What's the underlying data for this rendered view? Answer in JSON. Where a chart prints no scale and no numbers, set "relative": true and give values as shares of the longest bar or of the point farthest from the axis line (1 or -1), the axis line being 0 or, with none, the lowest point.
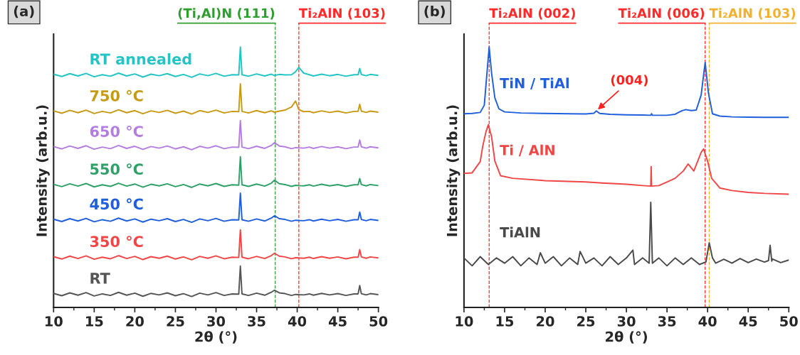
{
  "chart_data": [
    {
      "type": "line",
      "title": "(a)",
      "xlabel": "2θ (°)",
      "ylabel": "Intensity (arb.u.)",
      "relative": true,
      "tick_labels": "x",
      "xlim": [
        10,
        50
      ],
      "xticks": [
        10,
        15,
        20,
        25,
        30,
        35,
        40,
        45,
        50
      ],
      "x": [
        10,
        11,
        12,
        13,
        14,
        15,
        16,
        17,
        18,
        19,
        20,
        21,
        22,
        23,
        24,
        25,
        26,
        27,
        28,
        29,
        30,
        31,
        32,
        32.8,
        33,
        33.2,
        34,
        35,
        36,
        36.8,
        37.2,
        37.8,
        38.5,
        39.3,
        39.8,
        40.2,
        40.8,
        41.5,
        42,
        43,
        44,
        45,
        46,
        47,
        47.5,
        47.7,
        47.9,
        48.5,
        49,
        50
      ],
      "ref_lines": [
        {
          "axis": "x",
          "value": 37.3,
          "label": "(Ti,Al)N (111)",
          "color": "#2e9e2e",
          "line_style": "dashed"
        },
        {
          "axis": "x",
          "value": 40.2,
          "label": "Ti₂AlN (103)",
          "color": "#ff2a2a",
          "line_style": "dashed"
        }
      ],
      "series": [
        {
          "name": "RT",
          "color": "#555555",
          "values": [
            0.054,
            0.045,
            0.056,
            0.047,
            0.057,
            0.044,
            0.052,
            0.046,
            0.058,
            0.047,
            0.055,
            0.043,
            0.054,
            0.048,
            0.056,
            0.045,
            0.053,
            0.042,
            0.055,
            0.048,
            0.057,
            0.046,
            0.052,
            0.051,
            0.159,
            0.052,
            0.046,
            0.055,
            0.047,
            0.058,
            0.066,
            0.056,
            0.053,
            0.046,
            0.05,
            0.049,
            0.048,
            0.052,
            0.047,
            0.054,
            0.048,
            0.053,
            0.046,
            0.052,
            0.052,
            0.084,
            0.053,
            0.048,
            0.053,
            0.049
          ]
        },
        {
          "name": "350 °C",
          "color": "#f04646",
          "values": [
            0.195,
            0.186,
            0.197,
            0.188,
            0.198,
            0.185,
            0.193,
            0.187,
            0.199,
            0.188,
            0.196,
            0.184,
            0.195,
            0.189,
            0.197,
            0.186,
            0.194,
            0.183,
            0.196,
            0.189,
            0.198,
            0.187,
            0.193,
            0.192,
            0.298,
            0.193,
            0.187,
            0.196,
            0.188,
            0.199,
            0.208,
            0.197,
            0.194,
            0.187,
            0.191,
            0.19,
            0.189,
            0.193,
            0.188,
            0.195,
            0.189,
            0.194,
            0.187,
            0.193,
            0.193,
            0.222,
            0.194,
            0.189,
            0.194,
            0.19
          ]
        },
        {
          "name": "450 °C",
          "color": "#1f5fdc",
          "values": [
            0.339,
            0.33,
            0.341,
            0.332,
            0.342,
            0.329,
            0.337,
            0.331,
            0.343,
            0.332,
            0.34,
            0.328,
            0.339,
            0.333,
            0.341,
            0.33,
            0.338,
            0.327,
            0.34,
            0.333,
            0.342,
            0.331,
            0.337,
            0.336,
            0.439,
            0.337,
            0.331,
            0.34,
            0.332,
            0.343,
            0.352,
            0.341,
            0.338,
            0.331,
            0.335,
            0.334,
            0.333,
            0.337,
            0.332,
            0.339,
            0.333,
            0.338,
            0.331,
            0.337,
            0.337,
            0.366,
            0.338,
            0.333,
            0.338,
            0.334
          ]
        },
        {
          "name": "550 °C",
          "color": "#2fa068",
          "values": [
            0.473,
            0.464,
            0.475,
            0.466,
            0.476,
            0.463,
            0.471,
            0.465,
            0.477,
            0.466,
            0.474,
            0.462,
            0.473,
            0.467,
            0.475,
            0.464,
            0.472,
            0.461,
            0.474,
            0.467,
            0.476,
            0.465,
            0.471,
            0.47,
            0.579,
            0.471,
            0.465,
            0.474,
            0.466,
            0.477,
            0.489,
            0.475,
            0.472,
            0.465,
            0.469,
            0.468,
            0.467,
            0.471,
            0.466,
            0.473,
            0.467,
            0.472,
            0.465,
            0.471,
            0.471,
            0.495,
            0.472,
            0.467,
            0.472,
            0.468
          ]
        },
        {
          "name": "650 °C",
          "color": "#b47ee0",
          "values": [
            0.618,
            0.609,
            0.62,
            0.611,
            0.621,
            0.608,
            0.616,
            0.61,
            0.622,
            0.611,
            0.619,
            0.607,
            0.618,
            0.612,
            0.62,
            0.609,
            0.617,
            0.606,
            0.619,
            0.612,
            0.621,
            0.61,
            0.616,
            0.615,
            0.718,
            0.616,
            0.61,
            0.619,
            0.611,
            0.622,
            0.633,
            0.62,
            0.617,
            0.61,
            0.614,
            0.613,
            0.612,
            0.616,
            0.611,
            0.618,
            0.612,
            0.617,
            0.61,
            0.616,
            0.616,
            0.643,
            0.617,
            0.612,
            0.617,
            0.613
          ]
        },
        {
          "name": "750 °C",
          "color": "#c89a14",
          "values": [
            0.755,
            0.746,
            0.757,
            0.748,
            0.758,
            0.745,
            0.753,
            0.747,
            0.759,
            0.748,
            0.756,
            0.744,
            0.755,
            0.749,
            0.757,
            0.746,
            0.754,
            0.743,
            0.756,
            0.749,
            0.758,
            0.747,
            0.753,
            0.752,
            0.859,
            0.753,
            0.747,
            0.756,
            0.748,
            0.755,
            0.75,
            0.754,
            0.758,
            0.77,
            0.793,
            0.76,
            0.752,
            0.753,
            0.748,
            0.755,
            0.749,
            0.754,
            0.747,
            0.753,
            0.753,
            0.78,
            0.754,
            0.749,
            0.754,
            0.75
          ]
        },
        {
          "name": "RT annealed",
          "color": "#22c4c4",
          "values": [
            0.896,
            0.887,
            0.898,
            0.889,
            0.899,
            0.886,
            0.894,
            0.888,
            0.9,
            0.889,
            0.897,
            0.885,
            0.896,
            0.89,
            0.898,
            0.887,
            0.895,
            0.884,
            0.897,
            0.89,
            0.899,
            0.888,
            0.894,
            0.893,
            1.0,
            0.894,
            0.888,
            0.897,
            0.889,
            0.896,
            0.891,
            0.895,
            0.893,
            0.894,
            0.905,
            0.922,
            0.9,
            0.894,
            0.889,
            0.896,
            0.89,
            0.895,
            0.888,
            0.894,
            0.894,
            0.918,
            0.895,
            0.89,
            0.895,
            0.891
          ]
        }
      ]
    },
    {
      "type": "line",
      "title": "(b)",
      "xlabel": "2θ (°)",
      "ylabel": "Intensity (arb.u.)",
      "relative": true,
      "tick_labels": "x",
      "xlim": [
        10,
        50
      ],
      "xticks": [
        10,
        15,
        20,
        25,
        30,
        35,
        40,
        45,
        50
      ],
      "ref_lines": [
        {
          "axis": "x",
          "value": 13.1,
          "label": "Ti₂AlN (002)",
          "color": "#ff2a2a",
          "line_style": "dashed"
        },
        {
          "axis": "x",
          "value": 39.7,
          "label": "Ti₂AlN (006)",
          "color": "#ff2a2a",
          "line_style": "dashed"
        },
        {
          "axis": "x",
          "value": 40.2,
          "label": "Ti₂AlN (103)",
          "color": "#f0b030",
          "line_style": "dashed"
        }
      ],
      "annotations": [
        {
          "text": "(004)",
          "x": 26.3,
          "y": 0.755
        }
      ],
      "series": [
        {
          "name": "TiN / TiAl",
          "color": "#1f5fdc",
          "x": [
            10,
            11,
            12,
            12.5,
            12.8,
            13.1,
            13.4,
            13.8,
            14.3,
            15,
            17,
            20,
            23,
            25,
            26,
            26.3,
            26.7,
            28,
            30,
            32,
            33,
            33.1,
            33.2,
            35,
            36,
            36.8,
            37.3,
            38,
            38.6,
            39.2,
            39.7,
            40.1,
            40.6,
            41.5,
            43,
            45,
            47,
            50
          ],
          "values": [
            0.744,
            0.745,
            0.749,
            0.777,
            0.89,
            1.0,
            0.899,
            0.805,
            0.763,
            0.751,
            0.747,
            0.745,
            0.744,
            0.743,
            0.746,
            0.755,
            0.745,
            0.742,
            0.74,
            0.739,
            0.738,
            0.744,
            0.738,
            0.738,
            0.742,
            0.755,
            0.76,
            0.756,
            0.758,
            0.815,
            0.941,
            0.824,
            0.744,
            0.735,
            0.732,
            0.731,
            0.73,
            0.73
          ]
        },
        {
          "name": "Ti / AlN",
          "color": "#f04646",
          "x": [
            10,
            11,
            12,
            12.3,
            12.7,
            13.0,
            13.4,
            13.8,
            14.5,
            16,
            20,
            25,
            27,
            30,
            32,
            33.0,
            33.05,
            33.1,
            34,
            35,
            36,
            37,
            37.6,
            38.3,
            39.2,
            39.5,
            40,
            40.5,
            41.5,
            43,
            45,
            47,
            50
          ],
          "values": [
            0.515,
            0.517,
            0.56,
            0.618,
            0.674,
            0.702,
            0.655,
            0.562,
            0.506,
            0.496,
            0.487,
            0.482,
            0.478,
            0.473,
            0.468,
            0.466,
            0.541,
            0.466,
            0.468,
            0.482,
            0.496,
            0.524,
            0.551,
            0.524,
            0.595,
            0.609,
            0.562,
            0.496,
            0.459,
            0.449,
            0.442,
            0.438,
            0.435
          ]
        },
        {
          "name": "TiAlN",
          "color": "#4a4a4a",
          "x": [
            10,
            11,
            12,
            13,
            14,
            15,
            16,
            17,
            18,
            19,
            19.4,
            20,
            21,
            22,
            23,
            24,
            24.3,
            25,
            26,
            27,
            28,
            29,
            30,
            30.8,
            31,
            32,
            32.8,
            33,
            33.2,
            34,
            35,
            36,
            37,
            38,
            39,
            39.8,
            40.2,
            40.6,
            41,
            42,
            43,
            44,
            45,
            46,
            47,
            47.5,
            47.7,
            47.9,
            48,
            49,
            50
          ],
          "values": [
            0.19,
            0.16,
            0.195,
            0.165,
            0.19,
            0.17,
            0.195,
            0.16,
            0.19,
            0.165,
            0.21,
            0.17,
            0.195,
            0.16,
            0.19,
            0.165,
            0.215,
            0.17,
            0.19,
            0.16,
            0.195,
            0.165,
            0.19,
            0.22,
            0.165,
            0.19,
            0.17,
            0.404,
            0.17,
            0.19,
            0.16,
            0.19,
            0.165,
            0.19,
            0.165,
            0.175,
            0.248,
            0.19,
            0.17,
            0.185,
            0.17,
            0.188,
            0.172,
            0.186,
            0.174,
            0.18,
            0.239,
            0.178,
            0.186,
            0.172,
            0.182
          ]
        }
      ]
    }
  ]
}
